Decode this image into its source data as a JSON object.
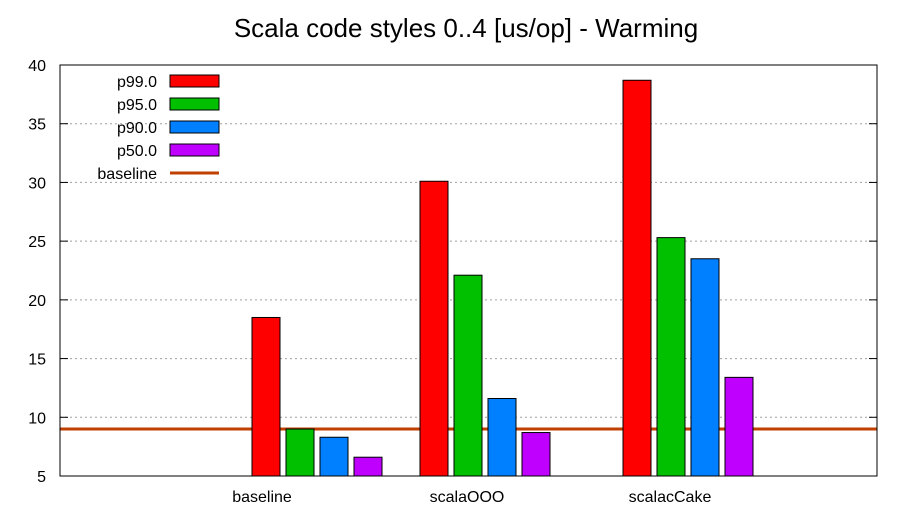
{
  "chart_data": {
    "type": "bar",
    "title": "Scala code styles 0..4 [us/op] - Warming",
    "xlabel": "",
    "ylabel": "",
    "ylim": [
      5,
      40
    ],
    "yticks": [
      5,
      10,
      15,
      20,
      25,
      30,
      35,
      40
    ],
    "categories": [
      "baseline",
      "scalaOOO",
      "scalacCake"
    ],
    "series": [
      {
        "name": "p99.0",
        "color": "#ff0000",
        "values": [
          18.5,
          30.1,
          38.7
        ]
      },
      {
        "name": "p95.0",
        "color": "#00c000",
        "values": [
          9.0,
          22.1,
          25.3
        ]
      },
      {
        "name": "p90.0",
        "color": "#0080ff",
        "values": [
          8.3,
          11.6,
          23.5
        ]
      },
      {
        "name": "p50.0",
        "color": "#c000ff",
        "values": [
          6.6,
          8.7,
          13.4
        ]
      }
    ],
    "reference_lines": [
      {
        "name": "baseline",
        "value": 9.0,
        "color": "#c04000"
      }
    ],
    "grid": true,
    "legend_position": "top-left"
  }
}
